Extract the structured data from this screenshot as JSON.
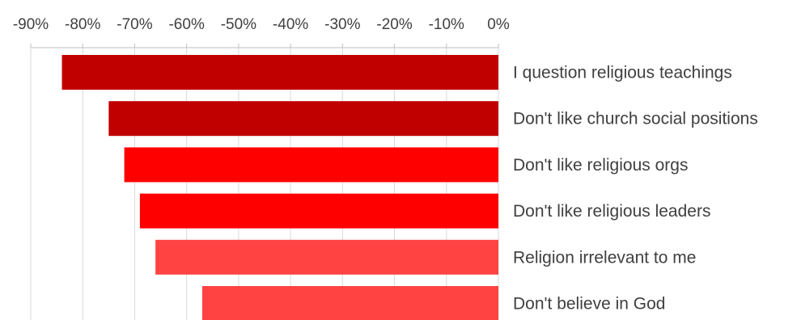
{
  "chart_data": {
    "type": "bar",
    "orientation": "horizontal",
    "title": "",
    "xlabel": "",
    "ylabel": "",
    "xlim": [
      -90,
      0
    ],
    "x_ticks": [
      -90,
      -80,
      -70,
      -60,
      -50,
      -40,
      -30,
      -20,
      -10,
      0
    ],
    "x_tick_labels": [
      "-90%",
      "-80%",
      "-70%",
      "-60%",
      "-50%",
      "-40%",
      "-30%",
      "-20%",
      "-10%",
      "0%"
    ],
    "x_axis_position": "top",
    "category_label_position": "right",
    "grid": true,
    "legend": false,
    "categories": [
      "I question religious teachings",
      "Don't like church social positions",
      "Don't like religious orgs",
      "Don't like religious leaders",
      "Religion irrelevant to me",
      "Don't believe in God"
    ],
    "values": [
      -84,
      -75,
      -72,
      -69,
      -66,
      -57
    ],
    "colors": [
      "#C00000",
      "#C00000",
      "#FF0000",
      "#FF0000",
      "#FF4343",
      "#FF4343"
    ]
  }
}
